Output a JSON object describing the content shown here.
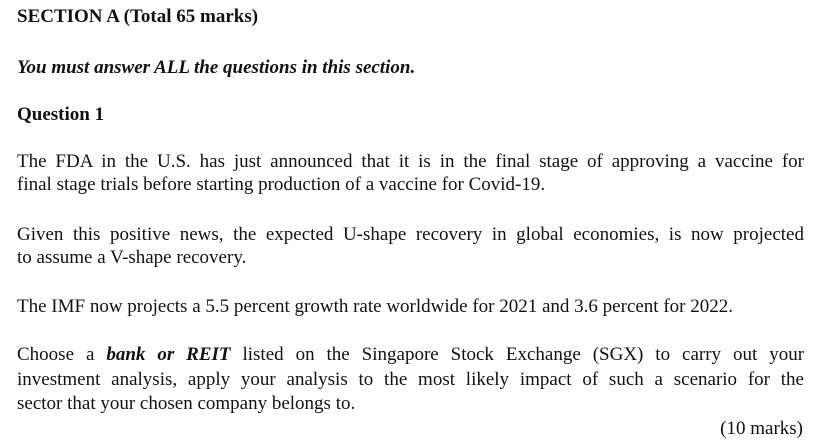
{
  "section": {
    "heading": "SECTION A (Total 65 marks)",
    "instruction": "You must answer ALL the questions in this section."
  },
  "question": {
    "title": "Question 1",
    "paragraph1": {
      "line1": "The FDA in the U.S. has just announced that it is in the final stage of approving a vaccine for",
      "line2": "final stage trials before starting production of a vaccine for Covid-19."
    },
    "paragraph2": {
      "line1": "Given this positive news, the expected U-shape recovery in global economies, is now projected",
      "line2": "to assume a V-shape recovery."
    },
    "paragraph3": {
      "line1": "The IMF now projects a 5.5 percent growth rate worldwide for 2021 and 3.6 percent for 2022."
    },
    "paragraph4": {
      "line1_prefix": "Choose a",
      "line1_emphasis": "bank or REIT",
      "line1_suffix": "listed on the Singapore Stock Exchange (SGX) to carry out your",
      "line2": "investment analysis, apply your analysis to the most likely impact of such a scenario for the",
      "line3": "sector that your chosen company belongs to."
    },
    "marks": "(10 marks)"
  }
}
